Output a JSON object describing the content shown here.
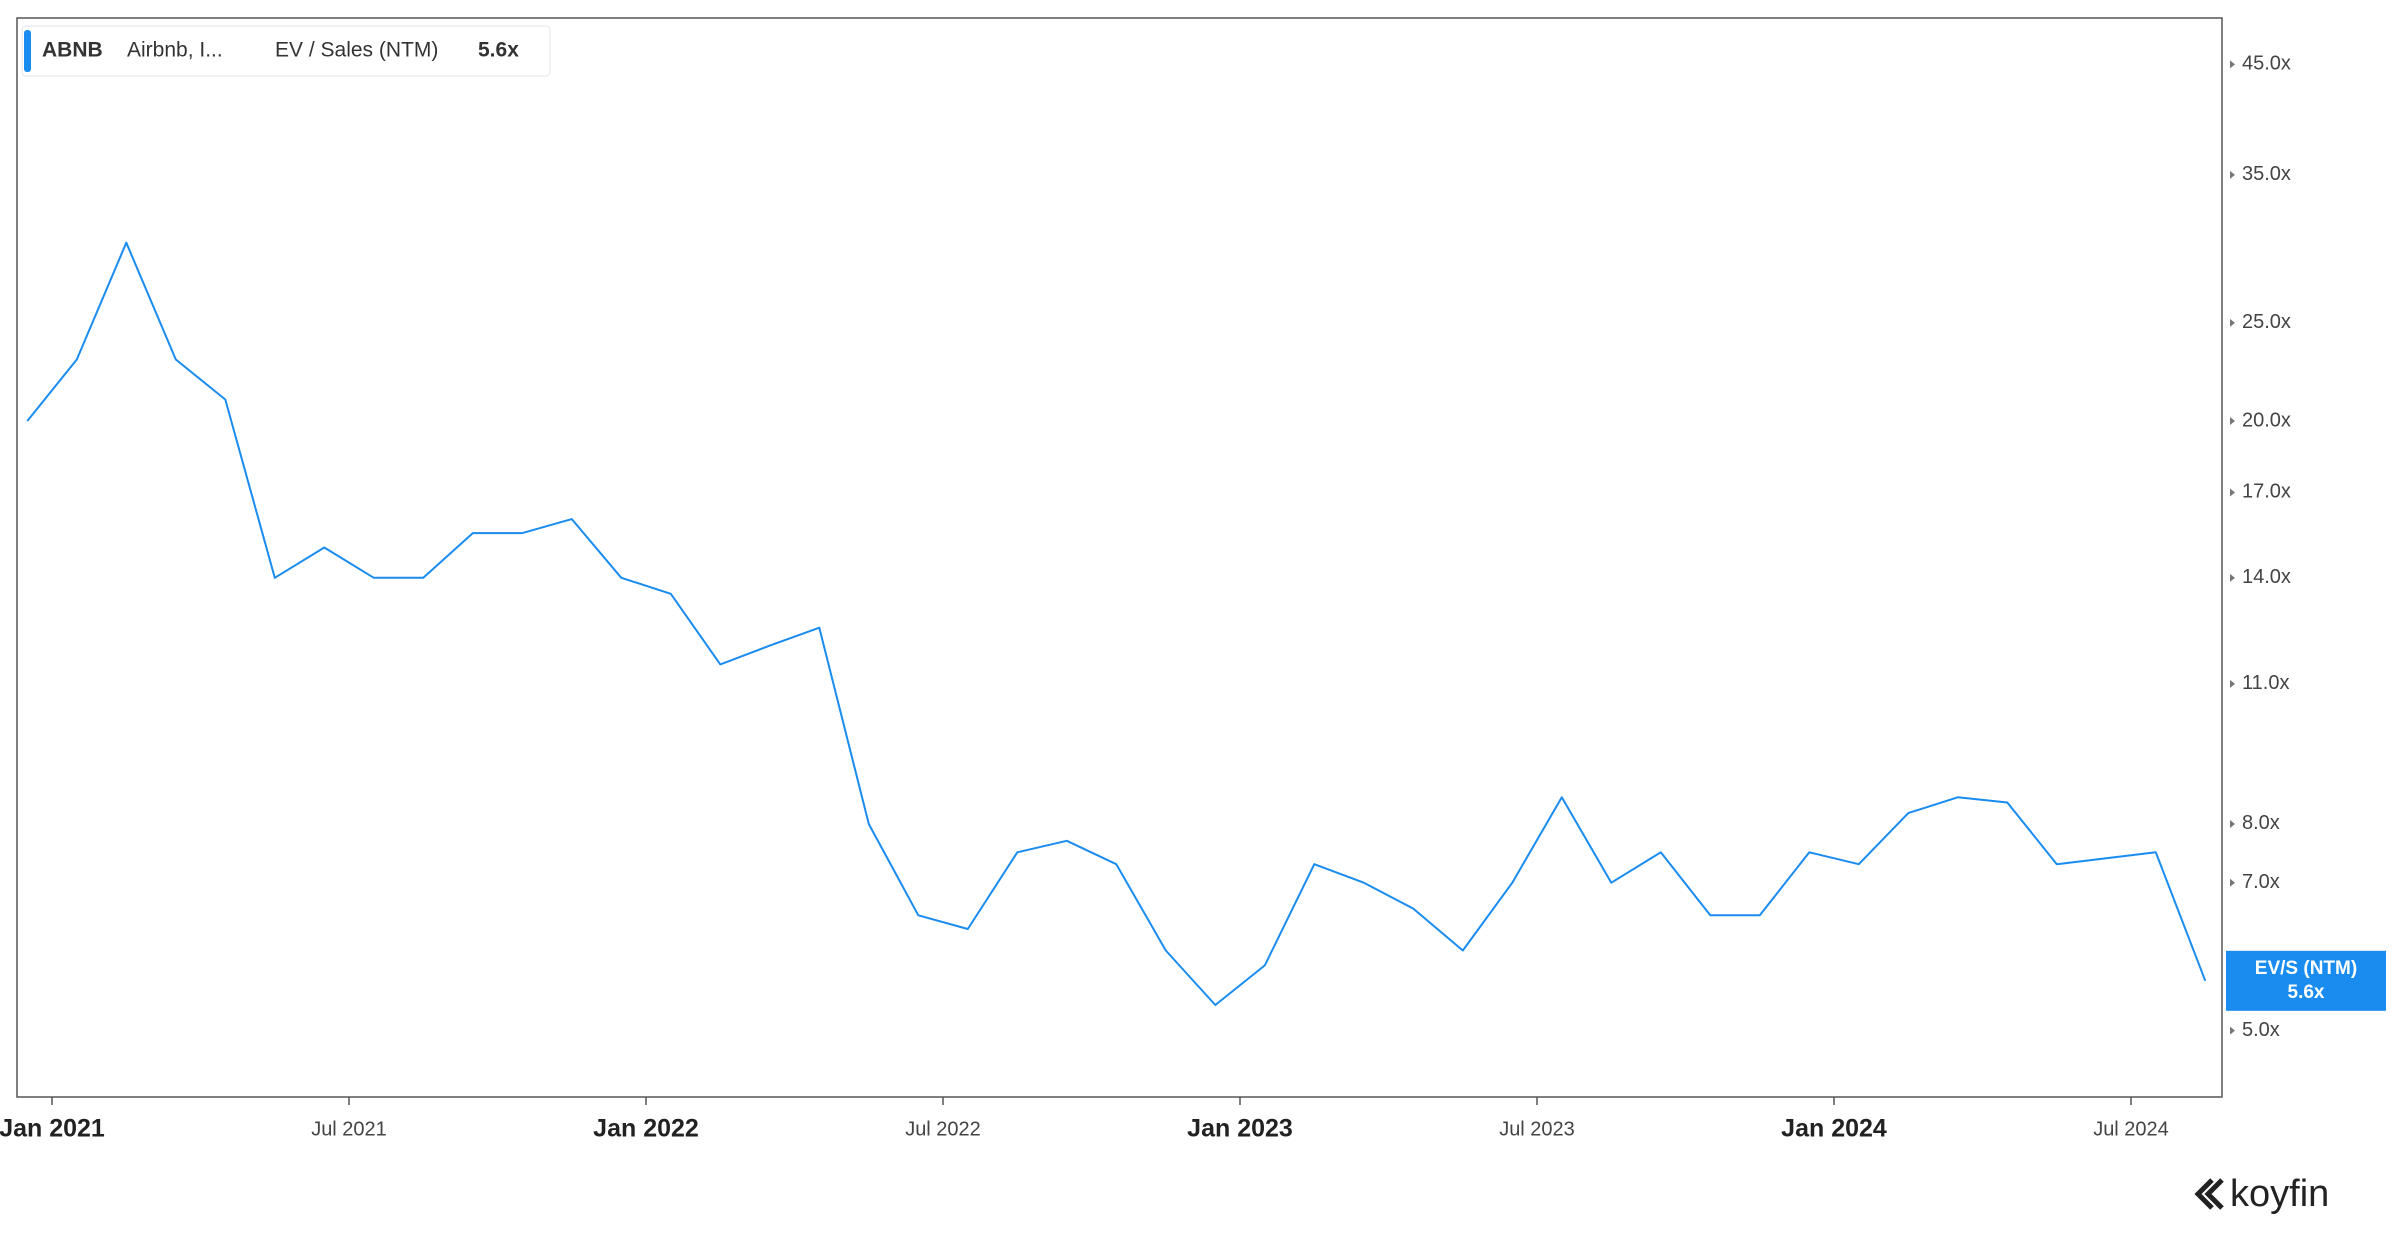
{
  "chart_data": {
    "type": "line",
    "legend": {
      "ticker": "ABNB",
      "company": "Airbnb, I...",
      "metric": "EV / Sales (NTM)",
      "value": "5.6x"
    },
    "price_tag": {
      "label": "EV/S (NTM)",
      "value": "5.6x"
    },
    "brand": "koyfin",
    "log_scale": true,
    "x": [
      "2020-12",
      "2021-01",
      "2021-02",
      "2021-03",
      "2021-04",
      "2021-05",
      "2021-06",
      "2021-07",
      "2021-08",
      "2021-09",
      "2021-10",
      "2021-11",
      "2021-12",
      "2022-01",
      "2022-02",
      "2022-03",
      "2022-04",
      "2022-05",
      "2022-06",
      "2022-07",
      "2022-08",
      "2022-09",
      "2022-10",
      "2022-11",
      "2022-12",
      "2023-01",
      "2023-02",
      "2023-03",
      "2023-04",
      "2023-05",
      "2023-06",
      "2023-07",
      "2023-08",
      "2023-09",
      "2023-10",
      "2023-11",
      "2023-12",
      "2024-01",
      "2024-02",
      "2024-03",
      "2024-04",
      "2024-05",
      "2024-06",
      "2024-07",
      "2024-08"
    ],
    "series": [
      {
        "name": "EV / Sales (NTM)",
        "color": "#1a8cf0",
        "values": [
          20,
          23,
          30,
          23,
          21,
          14,
          15,
          14,
          14,
          15.5,
          15.5,
          16,
          14,
          13.5,
          11.5,
          12,
          12.5,
          8,
          6.5,
          6.3,
          7.5,
          7.7,
          7.3,
          6,
          5.3,
          5.8,
          7.3,
          7,
          6.6,
          6,
          7,
          8.5,
          7,
          7.5,
          6.5,
          6.5,
          7.5,
          7.3,
          8.2,
          8.5,
          8.4,
          7.3,
          7.4,
          7.5,
          5.6
        ]
      }
    ],
    "ylim": [
      4.3,
      50
    ],
    "yticks": [
      {
        "value": 5,
        "label": "5.0x"
      },
      {
        "value": 7,
        "label": "7.0x"
      },
      {
        "value": 8,
        "label": "8.0x"
      },
      {
        "value": 11,
        "label": "11.0x"
      },
      {
        "value": 14,
        "label": "14.0x"
      },
      {
        "value": 17,
        "label": "17.0x"
      },
      {
        "value": 20,
        "label": "20.0x"
      },
      {
        "value": 25,
        "label": "25.0x"
      },
      {
        "value": 35,
        "label": "35.0x"
      },
      {
        "value": 45,
        "label": "45.0x"
      }
    ],
    "xticks": [
      {
        "value": "2021-01",
        "label": "Jan 2021"
      },
      {
        "value": "2021-07",
        "label": "Jul 2021"
      },
      {
        "value": "2022-01",
        "label": "Jan 2022"
      },
      {
        "value": "2022-07",
        "label": "Jul 2022"
      },
      {
        "value": "2023-01",
        "label": "Jan 2023"
      },
      {
        "value": "2023-07",
        "label": "Jul 2023"
      },
      {
        "value": "2024-01",
        "label": "Jan 2024"
      },
      {
        "value": "2024-07",
        "label": "Jul 2024"
      }
    ]
  }
}
